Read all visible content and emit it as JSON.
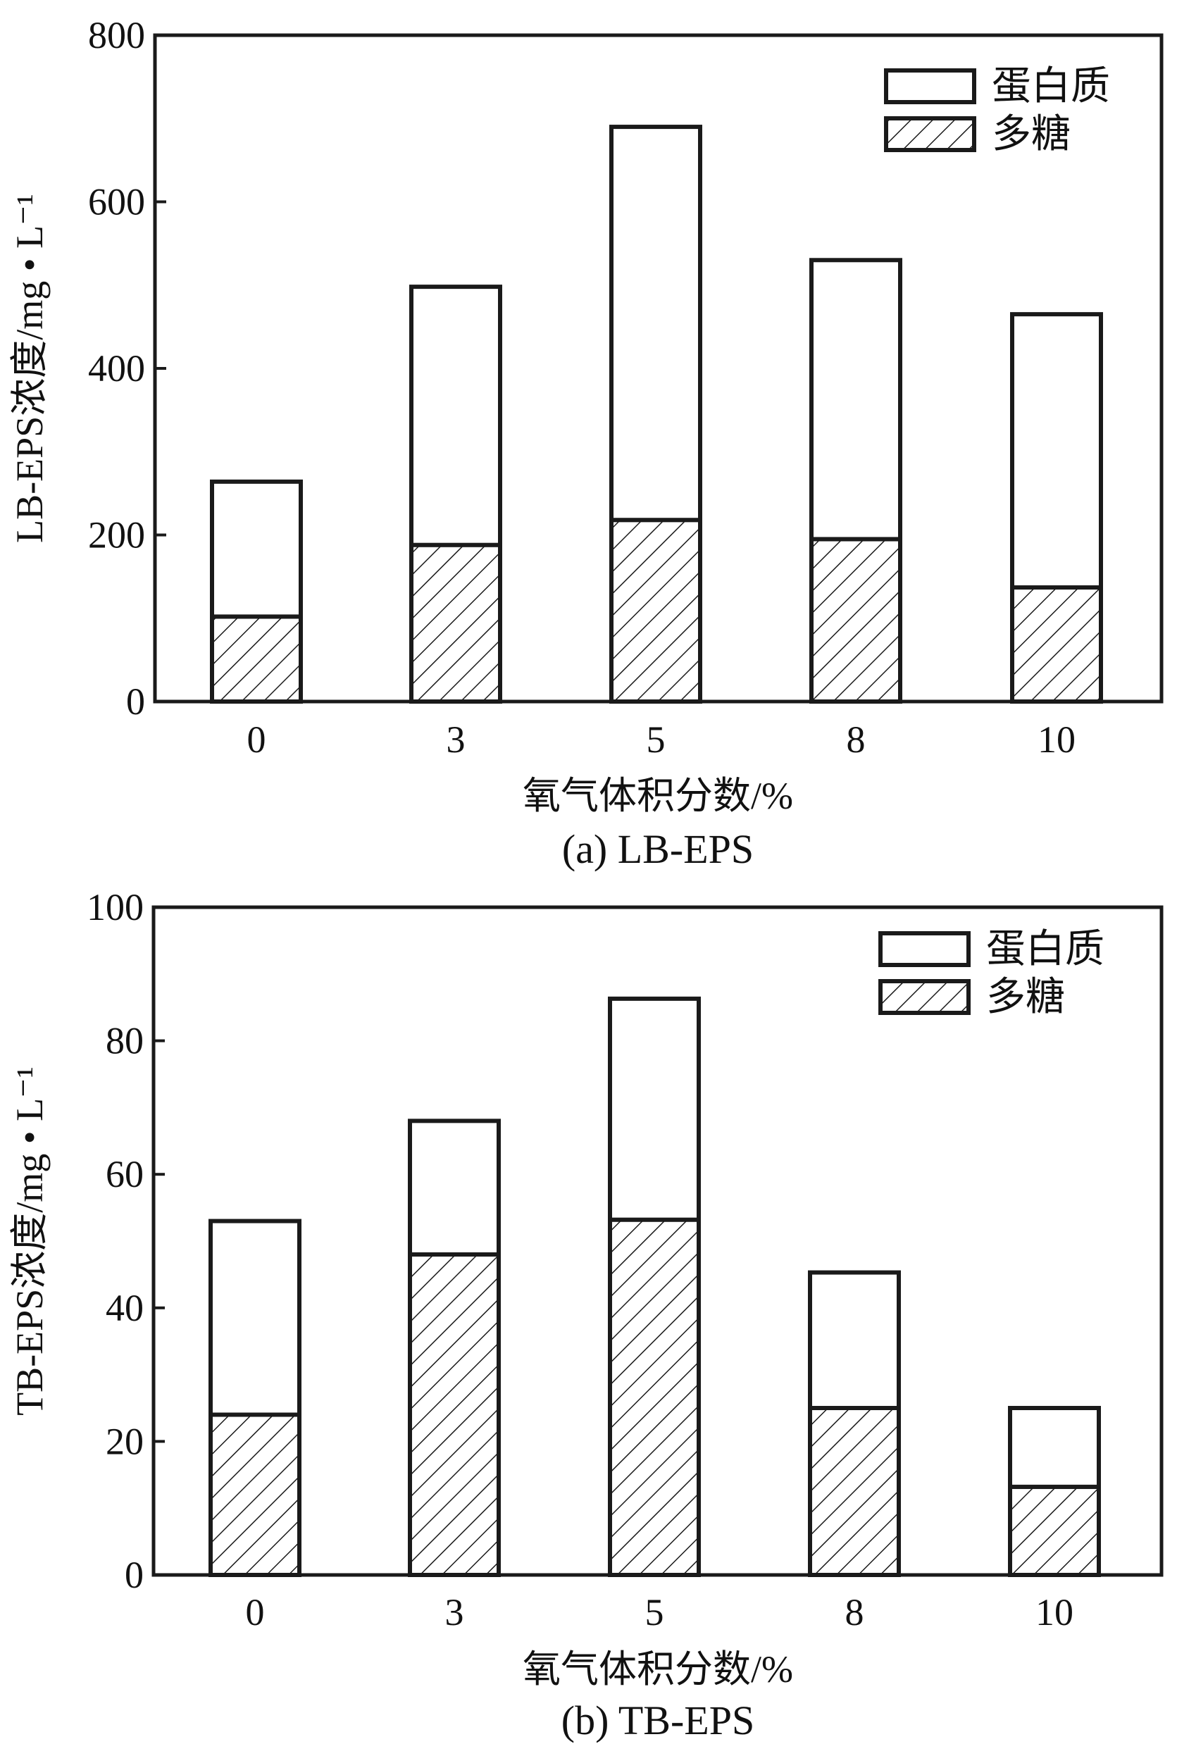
{
  "chart_data": [
    {
      "type": "bar",
      "stacked": true,
      "caption": "(a) LB-EPS",
      "xlabel": "氧气体积分数/%",
      "ylabel": "LB-EPS浓度/mg • L⁻¹",
      "categories": [
        "0",
        "3",
        "5",
        "8",
        "10"
      ],
      "ylim": [
        0,
        800
      ],
      "yticks": [
        0,
        200,
        400,
        600,
        800
      ],
      "series": [
        {
          "name": "多糖",
          "values": [
            102,
            188,
            218,
            195,
            137
          ],
          "fill": "hatch"
        },
        {
          "name": "蛋白质",
          "values": [
            162,
            310,
            472,
            335,
            328
          ],
          "fill": "white"
        }
      ],
      "totals": [
        264,
        498,
        690,
        530,
        465
      ],
      "legend_position": "top-right"
    },
    {
      "type": "bar",
      "stacked": true,
      "caption": "(b) TB-EPS",
      "xlabel": "氧气体积分数/%",
      "ylabel": "TB-EPS浓度/mg • L⁻¹",
      "categories": [
        "0",
        "3",
        "5",
        "8",
        "10"
      ],
      "ylim": [
        0,
        100
      ],
      "yticks": [
        0,
        20,
        40,
        60,
        80,
        100
      ],
      "series": [
        {
          "name": "多糖",
          "values": [
            24,
            48,
            53.2,
            25,
            13.2
          ],
          "fill": "hatch"
        },
        {
          "name": "蛋白质",
          "values": [
            29,
            20,
            33.1,
            20.3,
            11.8
          ],
          "fill": "white"
        }
      ],
      "totals": [
        53,
        68,
        86.3,
        45.3,
        25
      ],
      "legend_position": "top-right"
    }
  ]
}
